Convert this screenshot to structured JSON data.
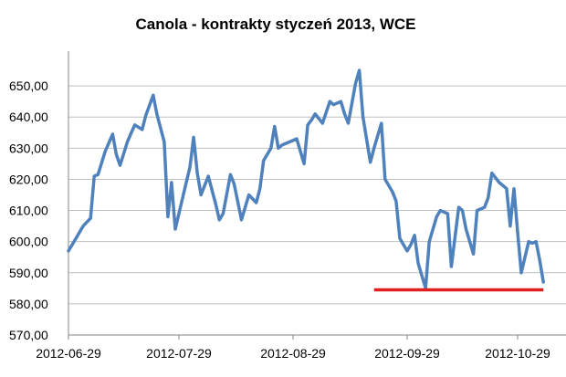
{
  "chart_data": {
    "type": "line",
    "title": "Canola - kontrakty styczeń 2013, WCE",
    "xlabel": "",
    "ylabel": "",
    "ylim": [
      570,
      660
    ],
    "y_ticks": [
      "570,00",
      "580,00",
      "590,00",
      "600,00",
      "610,00",
      "620,00",
      "630,00",
      "640,00",
      "650,00"
    ],
    "x_ticks": [
      "2012-06-29",
      "2012-07-29",
      "2012-08-29",
      "2012-09-29",
      "2012-10-29"
    ],
    "grid": "horizontal",
    "legend": "none",
    "series": [
      {
        "color": "#4f81bd",
        "x": [
          "2012-06-29",
          "2012-07-01",
          "2012-07-03",
          "2012-07-05",
          "2012-07-06",
          "2012-07-07",
          "2012-07-09",
          "2012-07-11",
          "2012-07-12",
          "2012-07-13",
          "2012-07-15",
          "2012-07-17",
          "2012-07-19",
          "2012-07-20",
          "2012-07-22",
          "2012-07-23",
          "2012-07-25",
          "2012-07-26",
          "2012-07-27",
          "2012-07-28",
          "2012-07-30",
          "2012-08-01",
          "2012-08-02",
          "2012-08-03",
          "2012-08-04",
          "2012-08-06",
          "2012-08-08",
          "2012-08-09",
          "2012-08-10",
          "2012-08-12",
          "2012-08-13",
          "2012-08-15",
          "2012-08-17",
          "2012-08-19",
          "2012-08-20",
          "2012-08-21",
          "2012-08-23",
          "2012-08-24",
          "2012-08-25",
          "2012-08-26",
          "2012-08-28",
          "2012-08-30",
          "2012-09-01",
          "2012-09-02",
          "2012-09-03",
          "2012-09-04",
          "2012-09-06",
          "2012-09-08",
          "2012-09-09",
          "2012-09-11",
          "2012-09-12",
          "2012-09-13",
          "2012-09-15",
          "2012-09-16",
          "2012-09-17",
          "2012-09-19",
          "2012-09-20",
          "2012-09-22",
          "2012-09-23",
          "2012-09-25",
          "2012-09-26",
          "2012-09-27",
          "2012-09-29",
          "2012-09-30",
          "2012-10-01",
          "2012-10-02",
          "2012-10-04",
          "2012-10-05",
          "2012-10-07",
          "2012-10-08",
          "2012-10-10",
          "2012-10-11",
          "2012-10-13",
          "2012-10-14",
          "2012-10-15",
          "2012-10-17",
          "2012-10-18",
          "2012-10-20",
          "2012-10-21",
          "2012-10-22",
          "2012-10-24",
          "2012-10-25",
          "2012-10-26",
          "2012-10-27",
          "2012-10-28",
          "2012-10-29",
          "2012-10-30",
          "2012-11-01",
          "2012-11-02",
          "2012-11-03",
          "2012-11-04",
          "2012-11-05"
        ],
        "values": [
          597,
          601,
          605,
          607.5,
          621,
          621.5,
          629,
          634.5,
          628,
          624.5,
          632,
          637.5,
          636,
          640.5,
          647,
          641,
          632,
          608,
          619,
          604,
          614,
          624,
          633.5,
          622,
          615,
          621,
          612,
          607,
          609,
          621.5,
          618.5,
          607,
          615,
          612.5,
          617,
          626,
          630,
          637,
          630,
          631,
          632,
          633,
          625,
          637.5,
          639,
          641,
          638,
          645,
          644,
          645,
          641,
          638,
          651,
          655,
          640,
          625.5,
          630,
          638,
          620,
          616,
          613,
          601,
          597,
          599,
          602,
          593,
          585,
          600,
          608,
          610,
          609,
          592,
          611,
          610,
          604,
          596,
          610,
          611,
          614,
          622,
          619,
          618,
          617,
          605,
          617,
          603,
          590,
          600,
          599.5,
          600,
          594,
          587
        ]
      }
    ],
    "annotations": [
      {
        "type": "horizontal-line",
        "color": "#e02020",
        "y": 584.5,
        "x_start": "2012-09-20",
        "x_end": "2012-11-05"
      }
    ]
  }
}
